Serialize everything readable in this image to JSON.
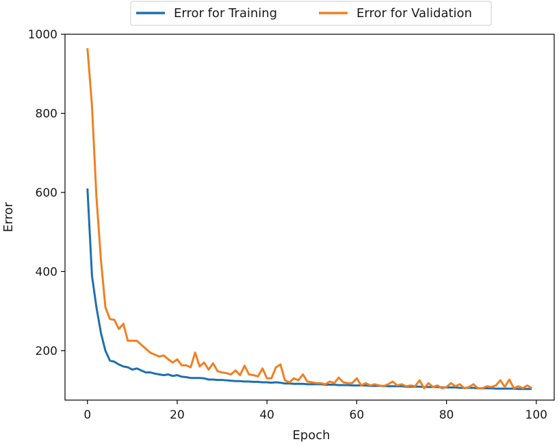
{
  "chart_data": {
    "type": "line",
    "xlabel": "Epoch",
    "ylabel": "Error",
    "xlim": [
      -5,
      104
    ],
    "ylim": [
      75,
      1000
    ],
    "xticks": [
      0,
      20,
      40,
      60,
      80,
      100
    ],
    "yticks": [
      200,
      400,
      600,
      800,
      1000
    ],
    "legend_position": "top-center-outside",
    "grid": false,
    "x": [
      0,
      1,
      2,
      3,
      4,
      5,
      6,
      7,
      8,
      9,
      10,
      11,
      12,
      13,
      14,
      15,
      16,
      17,
      18,
      19,
      20,
      21,
      22,
      23,
      24,
      25,
      26,
      27,
      28,
      29,
      30,
      31,
      32,
      33,
      34,
      35,
      36,
      37,
      38,
      39,
      40,
      41,
      42,
      43,
      44,
      45,
      46,
      47,
      48,
      49,
      50,
      51,
      52,
      53,
      54,
      55,
      56,
      57,
      58,
      59,
      60,
      61,
      62,
      63,
      64,
      65,
      66,
      67,
      68,
      69,
      70,
      71,
      72,
      73,
      74,
      75,
      76,
      77,
      78,
      79,
      80,
      81,
      82,
      83,
      84,
      85,
      86,
      87,
      88,
      89,
      90,
      91,
      92,
      93,
      94,
      95,
      96,
      97,
      98,
      99
    ],
    "series": [
      {
        "name": "Error for Training",
        "color": "#1f6fae",
        "values": [
          610,
          390,
          310,
          245,
          200,
          175,
          172,
          165,
          160,
          158,
          152,
          155,
          150,
          145,
          145,
          142,
          140,
          138,
          140,
          136,
          138,
          134,
          133,
          131,
          131,
          131,
          130,
          127,
          127,
          126,
          126,
          125,
          124,
          123,
          123,
          122,
          122,
          121,
          121,
          120,
          120,
          119,
          120,
          119,
          117,
          117,
          116,
          116,
          116,
          115,
          115,
          115,
          115,
          114,
          114,
          114,
          113,
          113,
          113,
          112,
          112,
          112,
          112,
          111,
          111,
          111,
          111,
          110,
          110,
          110,
          110,
          109,
          109,
          109,
          109,
          108,
          108,
          108,
          108,
          107,
          107,
          107,
          107,
          106,
          106,
          106,
          106,
          105,
          105,
          105,
          105,
          104,
          104,
          104,
          104,
          104,
          103,
          103,
          103,
          103
        ]
      },
      {
        "name": "Error for Validation",
        "color": "#f07f22",
        "values": [
          965,
          820,
          590,
          430,
          310,
          280,
          278,
          255,
          268,
          225,
          225,
          225,
          215,
          205,
          195,
          190,
          185,
          188,
          178,
          170,
          178,
          163,
          163,
          158,
          195,
          160,
          170,
          152,
          168,
          148,
          145,
          143,
          140,
          150,
          138,
          162,
          140,
          138,
          135,
          155,
          130,
          130,
          158,
          165,
          125,
          120,
          130,
          125,
          140,
          122,
          120,
          118,
          118,
          115,
          122,
          118,
          132,
          120,
          118,
          118,
          130,
          112,
          118,
          112,
          115,
          112,
          110,
          115,
          122,
          112,
          115,
          110,
          112,
          110,
          125,
          105,
          118,
          108,
          112,
          105,
          108,
          118,
          110,
          115,
          105,
          108,
          115,
          105,
          105,
          110,
          108,
          112,
          125,
          108,
          127,
          105,
          110,
          105,
          112,
          105
        ]
      }
    ]
  }
}
